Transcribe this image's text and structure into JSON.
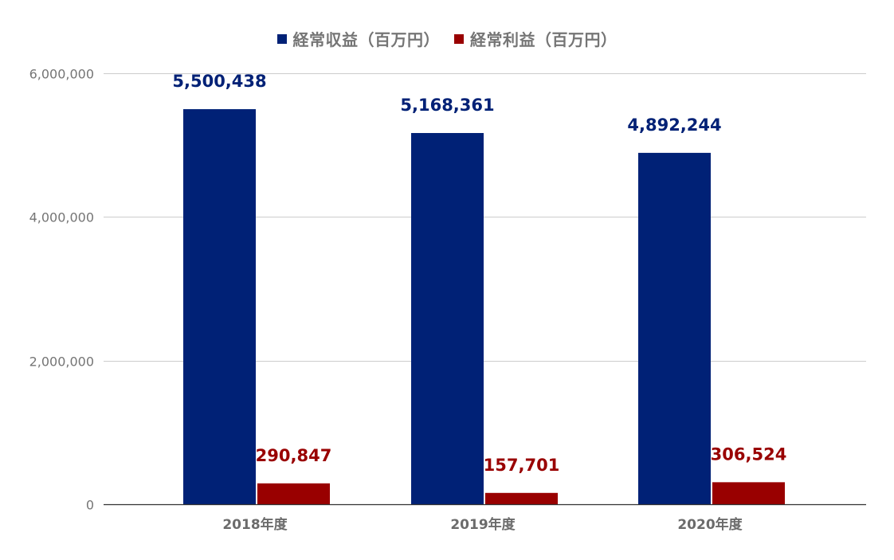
{
  "chart_data": {
    "type": "bar",
    "categories": [
      "2018年度",
      "2019年度",
      "2020年度"
    ],
    "series": [
      {
        "name": "経常収益（百万円）",
        "values": [
          5500438,
          5168361,
          4892244
        ],
        "labels": [
          "5,500,438",
          "5,168,361",
          "4,892,244"
        ],
        "color": "#002176"
      },
      {
        "name": "経常利益（百万円）",
        "values": [
          290847,
          157701,
          306524
        ],
        "labels": [
          "290,847",
          "157,701",
          "306,524"
        ],
        "color": "#990000"
      }
    ],
    "yticks": [
      {
        "value": 0,
        "label": "0"
      },
      {
        "value": 2000000,
        "label": "2,000,000"
      },
      {
        "value": 4000000,
        "label": "4,000,000"
      },
      {
        "value": 6000000,
        "label": "6,000,000"
      }
    ],
    "ylim": [
      0,
      6000000
    ],
    "grid": true,
    "legend_position": "top-center",
    "title": "",
    "xlabel": "",
    "ylabel": "",
    "colors": {
      "grid": "#cccccc",
      "axis": "#333333",
      "tick_text": "#757575",
      "category_text": "#6b6b6b"
    }
  }
}
